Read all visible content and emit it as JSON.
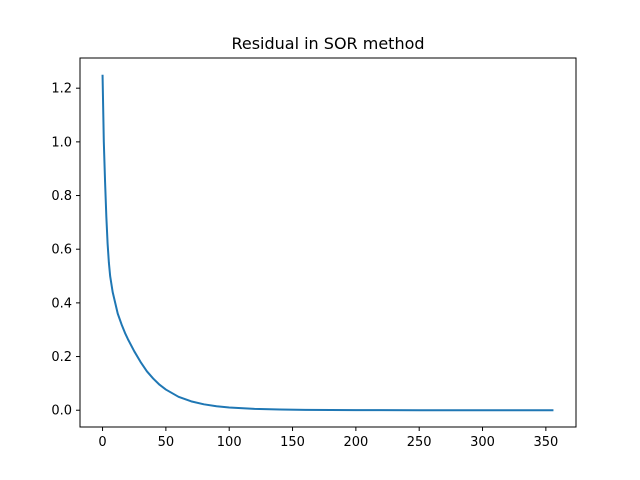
{
  "chart_data": {
    "type": "line",
    "title": "Residual in SOR method",
    "xlabel": "",
    "ylabel": "",
    "xlim": [
      -17.8,
      373.8
    ],
    "ylim": [
      -0.0625,
      1.3125
    ],
    "grid": false,
    "legend": "none",
    "x_ticks": [
      0,
      50,
      100,
      150,
      200,
      250,
      300,
      350
    ],
    "y_ticks": [
      0.0,
      0.2,
      0.4,
      0.6,
      0.8,
      1.0,
      1.2
    ],
    "x_tick_labels": [
      "0",
      "50",
      "100",
      "150",
      "200",
      "250",
      "300",
      "350"
    ],
    "y_tick_labels": [
      "0.0",
      "0.2",
      "0.4",
      "0.6",
      "0.8",
      "1.0",
      "1.2"
    ],
    "series": [
      {
        "color": "#1f77b4",
        "x": [
          0,
          1,
          2,
          3,
          4,
          5,
          6,
          8,
          10,
          12,
          15,
          18,
          20,
          25,
          30,
          35,
          40,
          45,
          50,
          60,
          70,
          80,
          90,
          100,
          120,
          140,
          160,
          180,
          200,
          250,
          300,
          356
        ],
        "y": [
          1.25,
          1.0,
          0.85,
          0.72,
          0.62,
          0.55,
          0.5,
          0.44,
          0.4,
          0.36,
          0.32,
          0.285,
          0.265,
          0.22,
          0.18,
          0.145,
          0.118,
          0.095,
          0.077,
          0.05,
          0.033,
          0.022,
          0.015,
          0.01,
          0.005,
          0.0025,
          0.0013,
          0.0007,
          0.0004,
          0.0001,
          3e-05,
          0.0
        ]
      }
    ]
  }
}
